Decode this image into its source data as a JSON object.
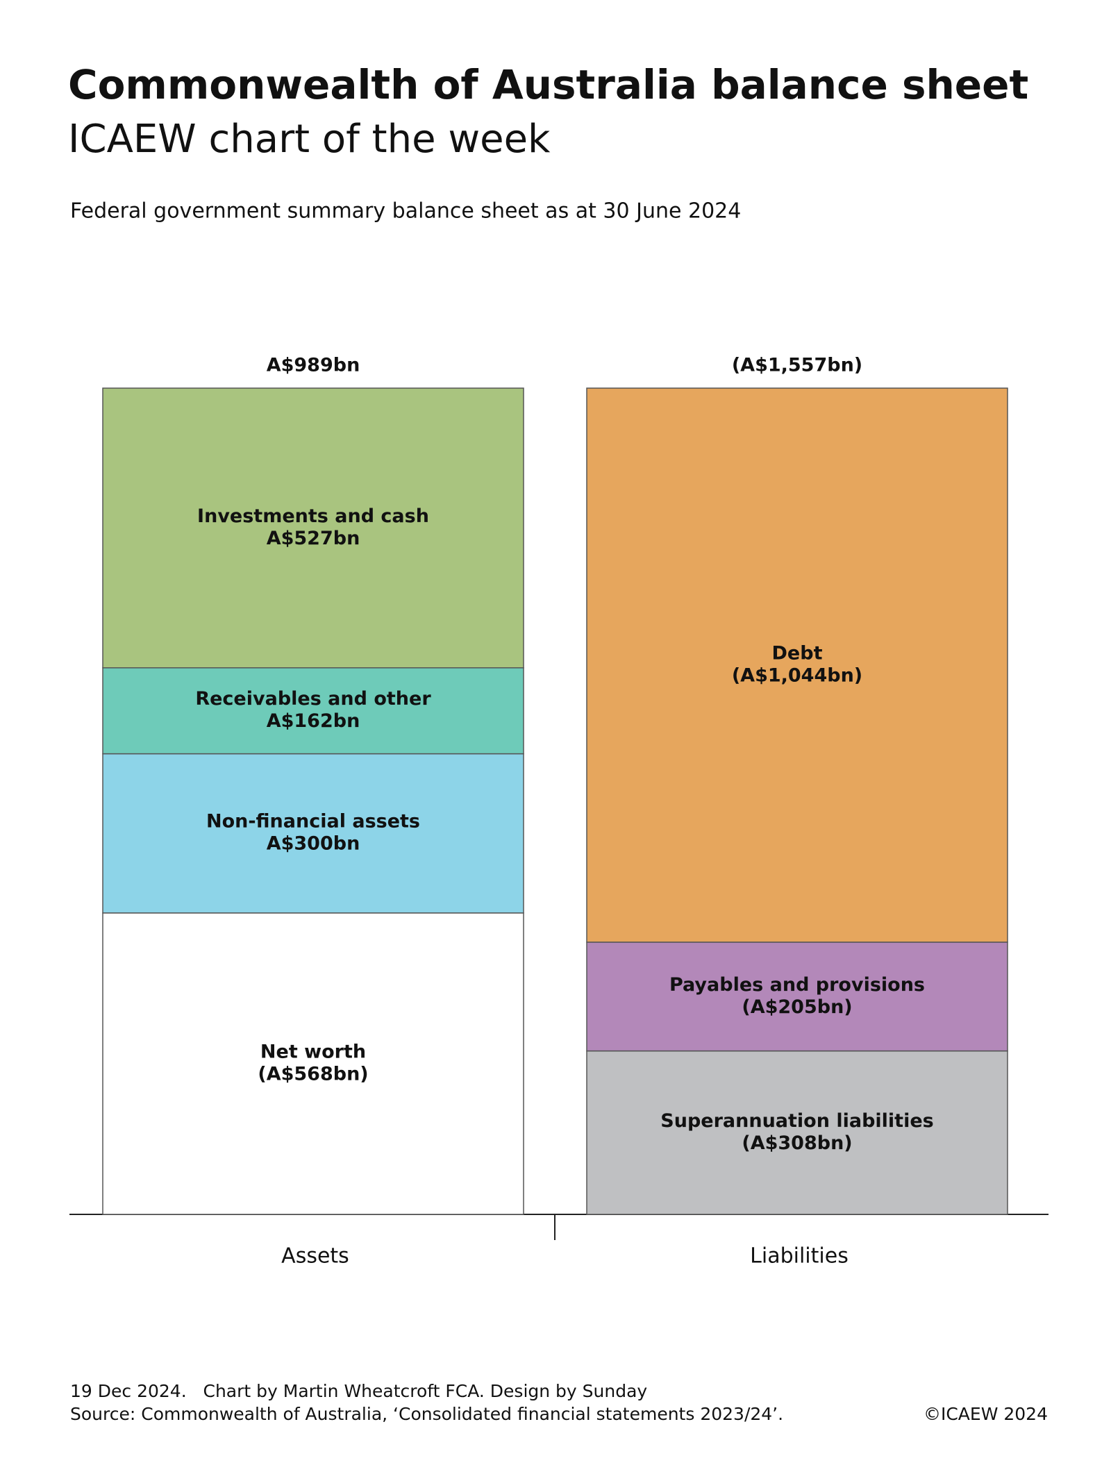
{
  "chart_data": {
    "type": "stacked-bar",
    "title": "Commonwealth of Australia balance sheet",
    "subtitle": "ICAEW chart of the week",
    "description": "Federal government summary balance sheet as at 30 June 2024",
    "categories": [
      "Assets",
      "Liabilities"
    ],
    "totals": [
      989,
      1557
    ],
    "total_labels": [
      "A$989bn",
      "(A$1,557bn)"
    ],
    "stacks": [
      [
        {
          "name": "Net worth",
          "value": 568,
          "value_label": "(A$568bn)",
          "color": "#ffffff"
        },
        {
          "name": "Non-financial assets",
          "value": 300,
          "value_label": "A$300bn",
          "color": "#8dd4e8"
        },
        {
          "name": "Receivables and other",
          "value": 162,
          "value_label": "A$162bn",
          "color": "#6ecbb9"
        },
        {
          "name": "Investments and cash",
          "value": 527,
          "value_label": "A$527bn",
          "color": "#a9c47f"
        }
      ],
      [
        {
          "name": "Superannuation liabilities",
          "value": 308,
          "value_label": "(A$308bn)",
          "color": "#bfc0c2"
        },
        {
          "name": "Payables and provisions",
          "value": 205,
          "value_label": "(A$205bn)",
          "color": "#b388b9"
        },
        {
          "name": "Debt",
          "value": 1044,
          "value_label": "(A$1,044bn)",
          "color": "#e6a65d"
        }
      ]
    ],
    "footer": "19 Dec 2024.   Chart by Martin Wheatcroft FCA. Design by Sunday",
    "source": "Source: Commonwealth of Australia, ‘Consolidated financial statements 2023/24’.",
    "copyright": "©ICAEW 2024"
  }
}
